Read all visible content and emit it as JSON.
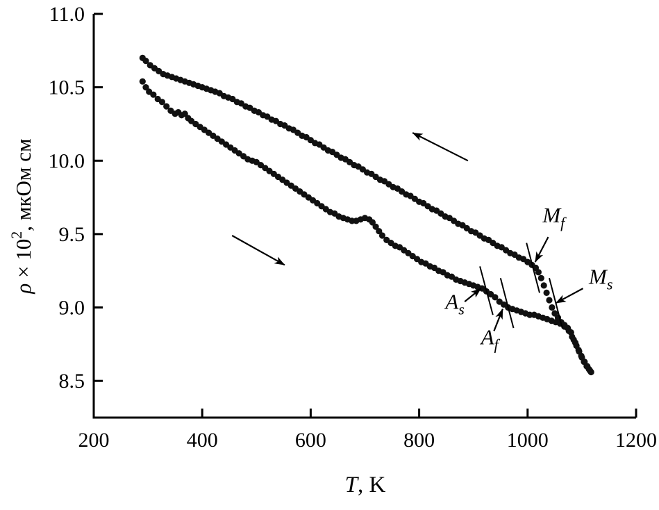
{
  "chart_data": {
    "type": "scatter",
    "description": "Electrical resistivity vs temperature hysteresis loop with martensitic transformation points",
    "x_axis": {
      "label_italic": "T",
      "label_rest": ", K",
      "ticks": [
        "200",
        "400",
        "600",
        "800",
        "1000",
        "1200"
      ],
      "lim": [
        200,
        1200
      ]
    },
    "y_axis": {
      "label_rho": "ρ",
      "label_mid": " × 10",
      "label_sup": "2",
      "label_rest": ", мкОм см",
      "ticks": [
        "8.5",
        "9.0",
        "9.5",
        "10.0",
        "10.5",
        "11.0"
      ],
      "lim": [
        8.25,
        11.0
      ]
    },
    "grid": false,
    "legend": null,
    "colors": {
      "points": "#111111",
      "axis": "#000000",
      "background": "#ffffff"
    },
    "series": [
      {
        "name": "heating-branch",
        "direction": "heating (low to high T, lower curve)",
        "points": [
          [
            290,
            10.54
          ],
          [
            296,
            10.5
          ],
          [
            302,
            10.47
          ],
          [
            310,
            10.45
          ],
          [
            318,
            10.42
          ],
          [
            326,
            10.4
          ],
          [
            334,
            10.37
          ],
          [
            342,
            10.34
          ],
          [
            350,
            10.32
          ],
          [
            356,
            10.33
          ],
          [
            362,
            10.31
          ],
          [
            368,
            10.32
          ],
          [
            374,
            10.29
          ],
          [
            380,
            10.27
          ],
          [
            388,
            10.25
          ],
          [
            396,
            10.23
          ],
          [
            404,
            10.21
          ],
          [
            412,
            10.19
          ],
          [
            420,
            10.17
          ],
          [
            428,
            10.15
          ],
          [
            436,
            10.13
          ],
          [
            444,
            10.11
          ],
          [
            452,
            10.09
          ],
          [
            460,
            10.07
          ],
          [
            468,
            10.05
          ],
          [
            476,
            10.03
          ],
          [
            484,
            10.01
          ],
          [
            492,
            10.0
          ],
          [
            500,
            9.99
          ],
          [
            508,
            9.97
          ],
          [
            516,
            9.95
          ],
          [
            524,
            9.93
          ],
          [
            532,
            9.91
          ],
          [
            540,
            9.89
          ],
          [
            548,
            9.87
          ],
          [
            556,
            9.85
          ],
          [
            564,
            9.83
          ],
          [
            572,
            9.81
          ],
          [
            580,
            9.79
          ],
          [
            588,
            9.77
          ],
          [
            596,
            9.75
          ],
          [
            604,
            9.73
          ],
          [
            612,
            9.71
          ],
          [
            620,
            9.69
          ],
          [
            628,
            9.67
          ],
          [
            636,
            9.65
          ],
          [
            644,
            9.64
          ],
          [
            652,
            9.62
          ],
          [
            660,
            9.61
          ],
          [
            668,
            9.6
          ],
          [
            676,
            9.59
          ],
          [
            684,
            9.59
          ],
          [
            692,
            9.6
          ],
          [
            700,
            9.61
          ],
          [
            708,
            9.6
          ],
          [
            714,
            9.58
          ],
          [
            720,
            9.55
          ],
          [
            726,
            9.52
          ],
          [
            732,
            9.49
          ],
          [
            740,
            9.46
          ],
          [
            748,
            9.44
          ],
          [
            756,
            9.42
          ],
          [
            764,
            9.41
          ],
          [
            772,
            9.39
          ],
          [
            780,
            9.37
          ],
          [
            788,
            9.35
          ],
          [
            796,
            9.33
          ],
          [
            804,
            9.31
          ],
          [
            812,
            9.3
          ],
          [
            820,
            9.28
          ],
          [
            828,
            9.27
          ],
          [
            836,
            9.25
          ],
          [
            844,
            9.24
          ],
          [
            852,
            9.22
          ],
          [
            860,
            9.21
          ],
          [
            868,
            9.19
          ],
          [
            876,
            9.18
          ],
          [
            884,
            9.17
          ],
          [
            892,
            9.16
          ],
          [
            900,
            9.15
          ],
          [
            908,
            9.14
          ],
          [
            916,
            9.13
          ],
          [
            924,
            9.11
          ],
          [
            932,
            9.09
          ],
          [
            940,
            9.07
          ],
          [
            948,
            9.04
          ],
          [
            956,
            9.02
          ],
          [
            964,
            9.0
          ],
          [
            972,
            8.99
          ],
          [
            980,
            8.98
          ],
          [
            988,
            8.97
          ],
          [
            996,
            8.96
          ],
          [
            1004,
            8.95
          ],
          [
            1012,
            8.95
          ],
          [
            1020,
            8.94
          ],
          [
            1028,
            8.93
          ],
          [
            1036,
            8.92
          ],
          [
            1044,
            8.91
          ],
          [
            1052,
            8.9
          ],
          [
            1060,
            8.89
          ],
          [
            1068,
            8.87
          ],
          [
            1076,
            8.84
          ],
          [
            1082,
            8.8
          ],
          [
            1088,
            8.76
          ],
          [
            1094,
            8.71
          ],
          [
            1099,
            8.67
          ],
          [
            1104,
            8.63
          ],
          [
            1109,
            8.6
          ],
          [
            1113,
            8.58
          ],
          [
            1117,
            8.56
          ]
        ]
      },
      {
        "name": "cooling-branch",
        "direction": "cooling (high to low T, upper curve)",
        "points": [
          [
            1115,
            8.57
          ],
          [
            1110,
            8.6
          ],
          [
            1105,
            8.63
          ],
          [
            1100,
            8.66
          ],
          [
            1095,
            8.7
          ],
          [
            1090,
            8.74
          ],
          [
            1085,
            8.78
          ],
          [
            1080,
            8.83
          ],
          [
            1074,
            8.86
          ],
          [
            1068,
            8.88
          ],
          [
            1062,
            8.9
          ],
          [
            1056,
            8.93
          ],
          [
            1050,
            8.96
          ],
          [
            1045,
            9.0
          ],
          [
            1040,
            9.05
          ],
          [
            1035,
            9.1
          ],
          [
            1030,
            9.15
          ],
          [
            1025,
            9.2
          ],
          [
            1020,
            9.24
          ],
          [
            1015,
            9.27
          ],
          [
            1008,
            9.29
          ],
          [
            1000,
            9.31
          ],
          [
            992,
            9.33
          ],
          [
            984,
            9.34
          ],
          [
            976,
            9.36
          ],
          [
            968,
            9.37
          ],
          [
            960,
            9.39
          ],
          [
            952,
            9.41
          ],
          [
            944,
            9.42
          ],
          [
            936,
            9.44
          ],
          [
            928,
            9.46
          ],
          [
            920,
            9.47
          ],
          [
            912,
            9.49
          ],
          [
            904,
            9.51
          ],
          [
            896,
            9.52
          ],
          [
            888,
            9.54
          ],
          [
            880,
            9.56
          ],
          [
            872,
            9.57
          ],
          [
            864,
            9.59
          ],
          [
            856,
            9.61
          ],
          [
            848,
            9.62
          ],
          [
            840,
            9.64
          ],
          [
            832,
            9.66
          ],
          [
            824,
            9.67
          ],
          [
            816,
            9.69
          ],
          [
            808,
            9.71
          ],
          [
            800,
            9.72
          ],
          [
            792,
            9.74
          ],
          [
            784,
            9.76
          ],
          [
            776,
            9.77
          ],
          [
            768,
            9.79
          ],
          [
            760,
            9.81
          ],
          [
            752,
            9.82
          ],
          [
            744,
            9.84
          ],
          [
            736,
            9.86
          ],
          [
            728,
            9.87
          ],
          [
            720,
            9.89
          ],
          [
            712,
            9.91
          ],
          [
            704,
            9.92
          ],
          [
            696,
            9.94
          ],
          [
            688,
            9.96
          ],
          [
            680,
            9.97
          ],
          [
            672,
            9.99
          ],
          [
            664,
            10.01
          ],
          [
            656,
            10.02
          ],
          [
            648,
            10.04
          ],
          [
            640,
            10.06
          ],
          [
            632,
            10.07
          ],
          [
            624,
            10.09
          ],
          [
            616,
            10.11
          ],
          [
            608,
            10.12
          ],
          [
            600,
            10.14
          ],
          [
            592,
            10.16
          ],
          [
            584,
            10.17
          ],
          [
            576,
            10.19
          ],
          [
            568,
            10.21
          ],
          [
            560,
            10.22
          ],
          [
            552,
            10.24
          ],
          [
            544,
            10.25
          ],
          [
            536,
            10.27
          ],
          [
            528,
            10.28
          ],
          [
            520,
            10.3
          ],
          [
            512,
            10.31
          ],
          [
            504,
            10.33
          ],
          [
            496,
            10.34
          ],
          [
            488,
            10.36
          ],
          [
            480,
            10.37
          ],
          [
            472,
            10.39
          ],
          [
            464,
            10.4
          ],
          [
            456,
            10.42
          ],
          [
            448,
            10.43
          ],
          [
            440,
            10.44
          ],
          [
            432,
            10.46
          ],
          [
            424,
            10.47
          ],
          [
            416,
            10.48
          ],
          [
            408,
            10.49
          ],
          [
            400,
            10.5
          ],
          [
            392,
            10.51
          ],
          [
            384,
            10.52
          ],
          [
            376,
            10.53
          ],
          [
            368,
            10.54
          ],
          [
            360,
            10.55
          ],
          [
            352,
            10.56
          ],
          [
            344,
            10.57
          ],
          [
            336,
            10.58
          ],
          [
            328,
            10.59
          ],
          [
            320,
            10.61
          ],
          [
            312,
            10.63
          ],
          [
            304,
            10.65
          ],
          [
            296,
            10.68
          ],
          [
            290,
            10.7
          ]
        ]
      }
    ],
    "direction_arrows": [
      {
        "name": "cooling-direction-arrow",
        "from": [
          890,
          10.0
        ],
        "to": [
          788,
          10.19
        ]
      },
      {
        "name": "heating-direction-arrow",
        "from": [
          455,
          9.49
        ],
        "to": [
          552,
          9.29
        ]
      }
    ],
    "annotations": [
      {
        "name": "Mf",
        "main": "M",
        "sub": "f",
        "label_at": [
          1048,
          9.58
        ],
        "arrow_from": [
          1038,
          9.48
        ],
        "arrow_to": [
          1014,
          9.31
        ],
        "tick_line": [
          [
            998,
            9.44
          ],
          [
            1022,
            9.1
          ]
        ]
      },
      {
        "name": "Ms",
        "main": "M",
        "sub": "s",
        "label_at": [
          1135,
          9.16
        ],
        "arrow_from": [
          1102,
          9.13
        ],
        "arrow_to": [
          1052,
          9.03
        ],
        "tick_line": [
          [
            1040,
            9.2
          ],
          [
            1064,
            8.86
          ]
        ]
      },
      {
        "name": "As",
        "main": "A",
        "sub": "s",
        "label_at": [
          866,
          8.99
        ],
        "arrow_from": [
          884,
          9.04
        ],
        "arrow_to": [
          914,
          9.13
        ],
        "tick_line": [
          [
            912,
            9.28
          ],
          [
            936,
            8.95
          ]
        ]
      },
      {
        "name": "Af",
        "main": "A",
        "sub": "f",
        "label_at": [
          930,
          8.75
        ],
        "arrow_from": [
          938,
          8.84
        ],
        "arrow_to": [
          954,
          8.99
        ],
        "tick_line": [
          [
            950,
            9.2
          ],
          [
            974,
            8.86
          ]
        ]
      }
    ]
  }
}
